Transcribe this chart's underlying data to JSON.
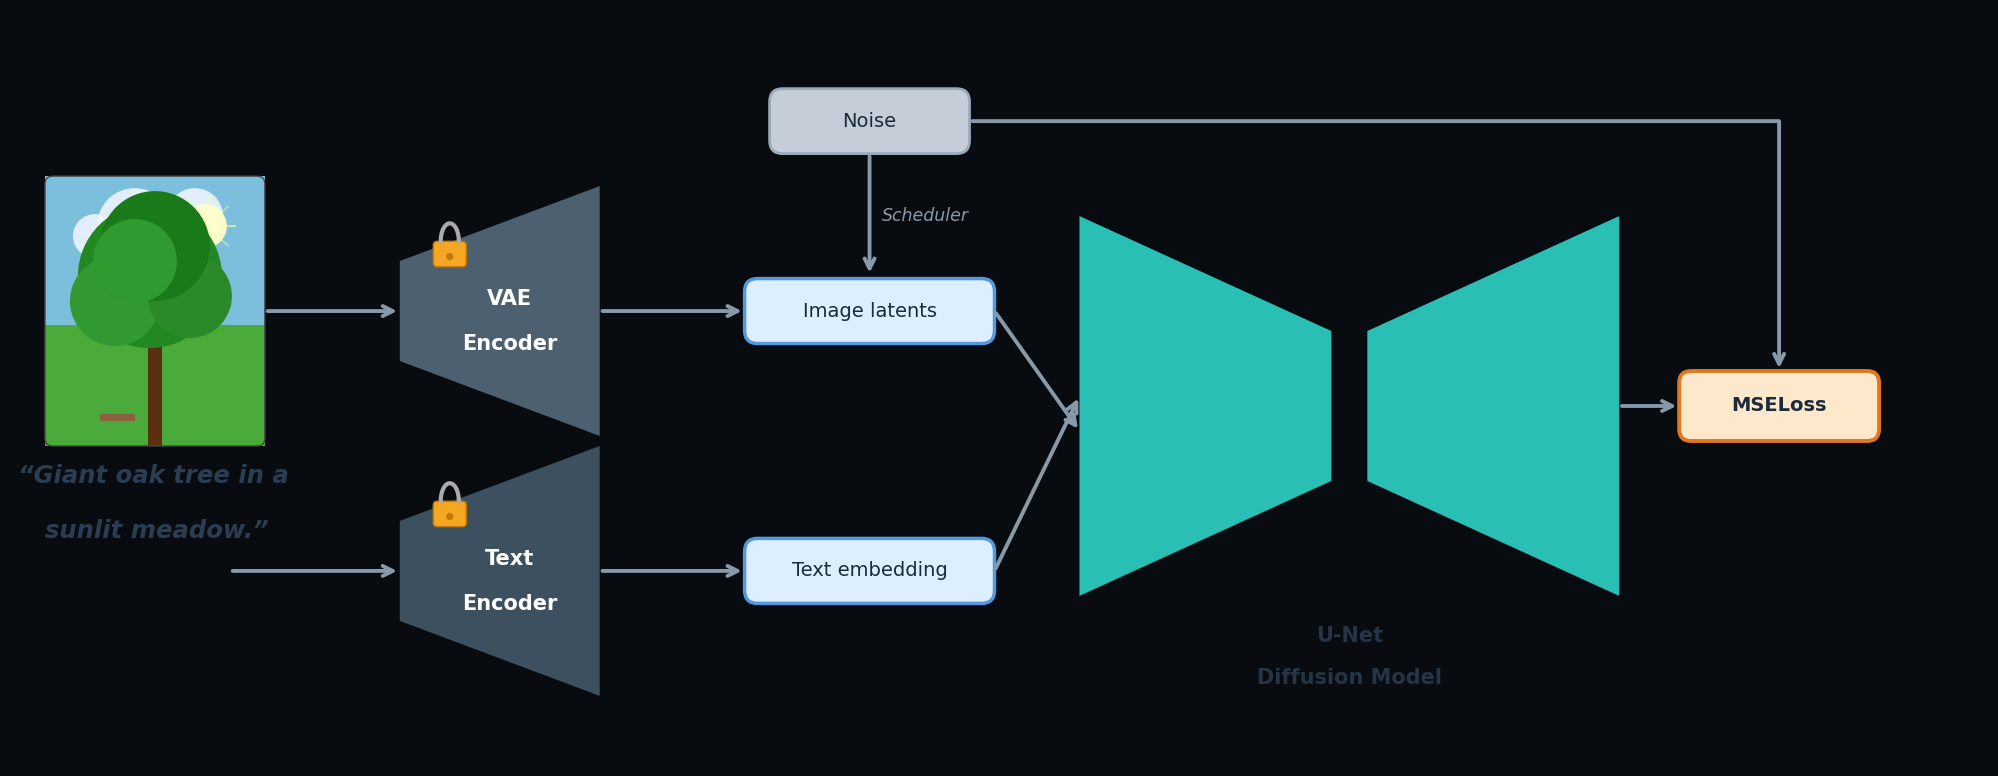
{
  "bg_color": "#080c10",
  "encoder_color_top": "#4d6070",
  "encoder_color_bot": "#3d5060",
  "unet_color": "#2abfb5",
  "noise_box_face": "#c5cdd8",
  "noise_box_edge": "#9aaabb",
  "latent_box_face": "#ddeeff",
  "latent_box_edge": "#5599dd",
  "mse_box_face": "#fde8cc",
  "mse_box_edge": "#e07820",
  "arrow_color": "#8899aa",
  "scheduler_color": "#8899aa",
  "text_dark": "#1a2b3c",
  "text_dark2": "#253545",
  "text_white": "#ffffff",
  "text_prompt_color": "#2a3d52",
  "lock_body_color": "#f5a623",
  "noise_label": "Noise",
  "scheduler_label": "Scheduler",
  "image_latents_label": "Image latents",
  "text_embedding_label": "Text embedding",
  "vae_label1": "VAE",
  "vae_label2": "Encoder",
  "text_enc_label1": "Text",
  "text_enc_label2": "Encoder",
  "unet_label1": "U-Net",
  "unet_label2": "Diffusion Model",
  "mse_label": "MSELoss",
  "prompt_line1": "“Giant oak tree in a",
  "prompt_line2": "sunlit meadow.”",
  "figsize": [
    19.99,
    7.76
  ],
  "dpi": 100
}
